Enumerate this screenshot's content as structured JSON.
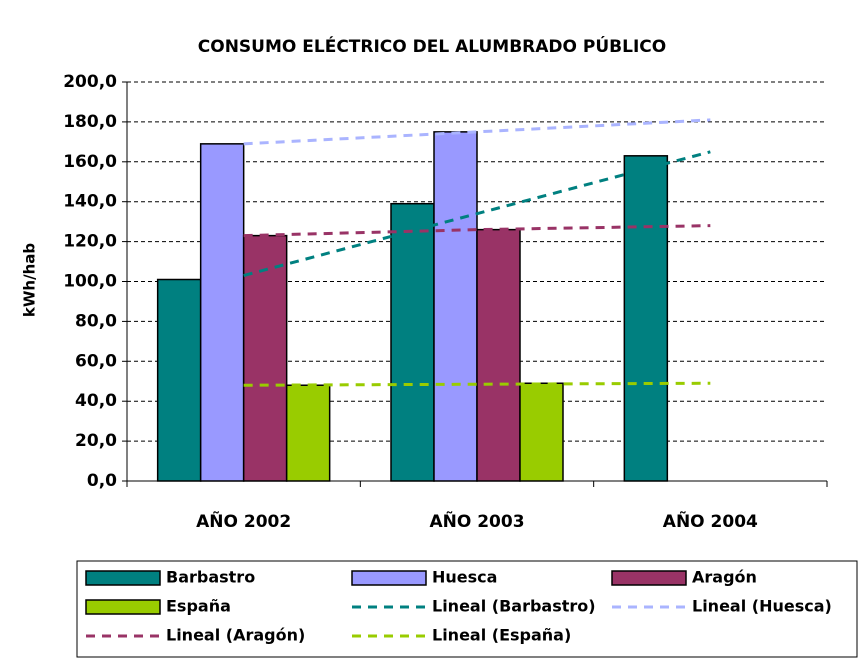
{
  "chart_data": {
    "type": "bar",
    "title": "CONSUMO ELÉCTRICO DEL ALUMBRADO PÚBLICO",
    "y_label": "kWh/hab",
    "categories": [
      "AÑO  2002",
      "AÑO 2003",
      "AÑO  2004"
    ],
    "series": [
      {
        "name": "Barbastro",
        "color": "#008080",
        "values": [
          101,
          139,
          163
        ]
      },
      {
        "name": "Huesca",
        "color": "#9999ff",
        "values": [
          169,
          175,
          null
        ]
      },
      {
        "name": "Aragón",
        "color": "#993366",
        "values": [
          123,
          126,
          null
        ]
      },
      {
        "name": "España",
        "color": "#99cc00",
        "values": [
          48,
          49,
          null
        ]
      }
    ],
    "trendlines": [
      {
        "name": "Lineal (Barbastro)",
        "color": "#008080",
        "values": [
          103,
          134,
          165
        ]
      },
      {
        "name": "Lineal (Huesca)",
        "color": "#aab4ff",
        "values": [
          169,
          175,
          181
        ]
      },
      {
        "name": "Lineal (Aragón)",
        "color": "#993366",
        "values": [
          123,
          126,
          128
        ]
      },
      {
        "name": "Lineal (España)",
        "color": "#99cc00",
        "values": [
          48,
          48.5,
          49
        ]
      }
    ],
    "ylim": [
      0,
      200
    ],
    "yticks": [
      {
        "value": 0,
        "label": "0,0"
      },
      {
        "value": 20,
        "label": "20,0"
      },
      {
        "value": 40,
        "label": "40,0"
      },
      {
        "value": 60,
        "label": "60,0"
      },
      {
        "value": 80,
        "label": "80,0"
      },
      {
        "value": 100,
        "label": "100,0"
      },
      {
        "value": 120,
        "label": "120,0"
      },
      {
        "value": 140,
        "label": "140,0"
      },
      {
        "value": 160,
        "label": "160,0"
      },
      {
        "value": 180,
        "label": "180,0"
      },
      {
        "value": 200,
        "label": "200,0"
      }
    ],
    "grid": true
  }
}
